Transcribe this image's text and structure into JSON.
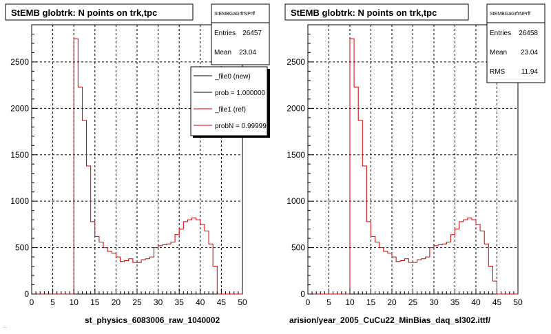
{
  "colors": {
    "ref_line": "#cc0000",
    "new_line": "#000000",
    "grid": "#000000",
    "background": "#ffffff"
  },
  "left": {
    "title": "StEMB globtrk: N points on trk,tpc",
    "stats": {
      "name": "StEMBGaGrfrNPrff",
      "entries_label": "Entries",
      "entries_value": "26457",
      "mean_label": "Mean",
      "mean_value": "23.04"
    },
    "legend": [
      {
        "label": "_file0 (new)",
        "color": "#000000"
      },
      {
        "label": "prob = 1.000000",
        "color": "#000000"
      },
      {
        "label": "_file1 (ref)",
        "color": "#cc0000"
      },
      {
        "label": "probN = 0.99999",
        "color": "#cc0000"
      }
    ],
    "footer": "st_physics_6083006_raw_1040002",
    "faint": "..."
  },
  "right": {
    "title": "StEMB globtrk: N points on trk,tpc",
    "stats": {
      "name": "StEMBGaGrfrNPrff",
      "entries_label": "Entries",
      "entries_value": "26458",
      "mean_label": "Mean",
      "mean_value": "23.04",
      "rms_label": "RMS",
      "rms_value": "11.94"
    },
    "footer": "arision/year_2005_CuCu22_MinBias_daq_sl302.ittf/"
  },
  "chart_data": [
    {
      "type": "bar",
      "title": "StEMB globtrk: N points on trk,tpc",
      "xlim": [
        0,
        50
      ],
      "ylim": [
        0,
        2900
      ],
      "xticks": [
        0,
        5,
        10,
        15,
        20,
        25,
        30,
        35,
        40,
        45,
        50
      ],
      "yticks": [
        0,
        500,
        1000,
        1500,
        2000,
        2500
      ],
      "grid": true,
      "bin_edges_start": 0,
      "bin_width": 1,
      "series": [
        {
          "name": "_file1 (ref)",
          "values": [
            0,
            0,
            0,
            0,
            0,
            0,
            0,
            0,
            0,
            0,
            2750,
            2230,
            1870,
            1380,
            780,
            620,
            560,
            500,
            460,
            440,
            400,
            350,
            360,
            380,
            340,
            340,
            370,
            380,
            400,
            500,
            520,
            530,
            540,
            560,
            640,
            700,
            780,
            800,
            820,
            800,
            750,
            680,
            540,
            300,
            0,
            0,
            0,
            0,
            0,
            0
          ]
        }
      ]
    },
    {
      "type": "bar",
      "title": "StEMB globtrk: N points on trk,tpc",
      "xlim": [
        0,
        50
      ],
      "ylim": [
        0,
        2900
      ],
      "xticks": [
        0,
        5,
        10,
        15,
        20,
        25,
        30,
        35,
        40,
        45,
        50
      ],
      "yticks": [
        0,
        500,
        1000,
        1500,
        2000,
        2500
      ],
      "grid": true,
      "bin_edges_start": 0,
      "bin_width": 1,
      "series": [
        {
          "name": "_file1 (ref)",
          "values": [
            0,
            0,
            0,
            0,
            0,
            0,
            0,
            0,
            0,
            0,
            2750,
            2230,
            1870,
            1380,
            780,
            620,
            560,
            500,
            460,
            440,
            400,
            350,
            360,
            380,
            340,
            340,
            370,
            380,
            400,
            500,
            520,
            530,
            540,
            560,
            640,
            700,
            780,
            800,
            820,
            800,
            750,
            680,
            540,
            300,
            140,
            0,
            0,
            0,
            0,
            0
          ]
        }
      ]
    }
  ]
}
